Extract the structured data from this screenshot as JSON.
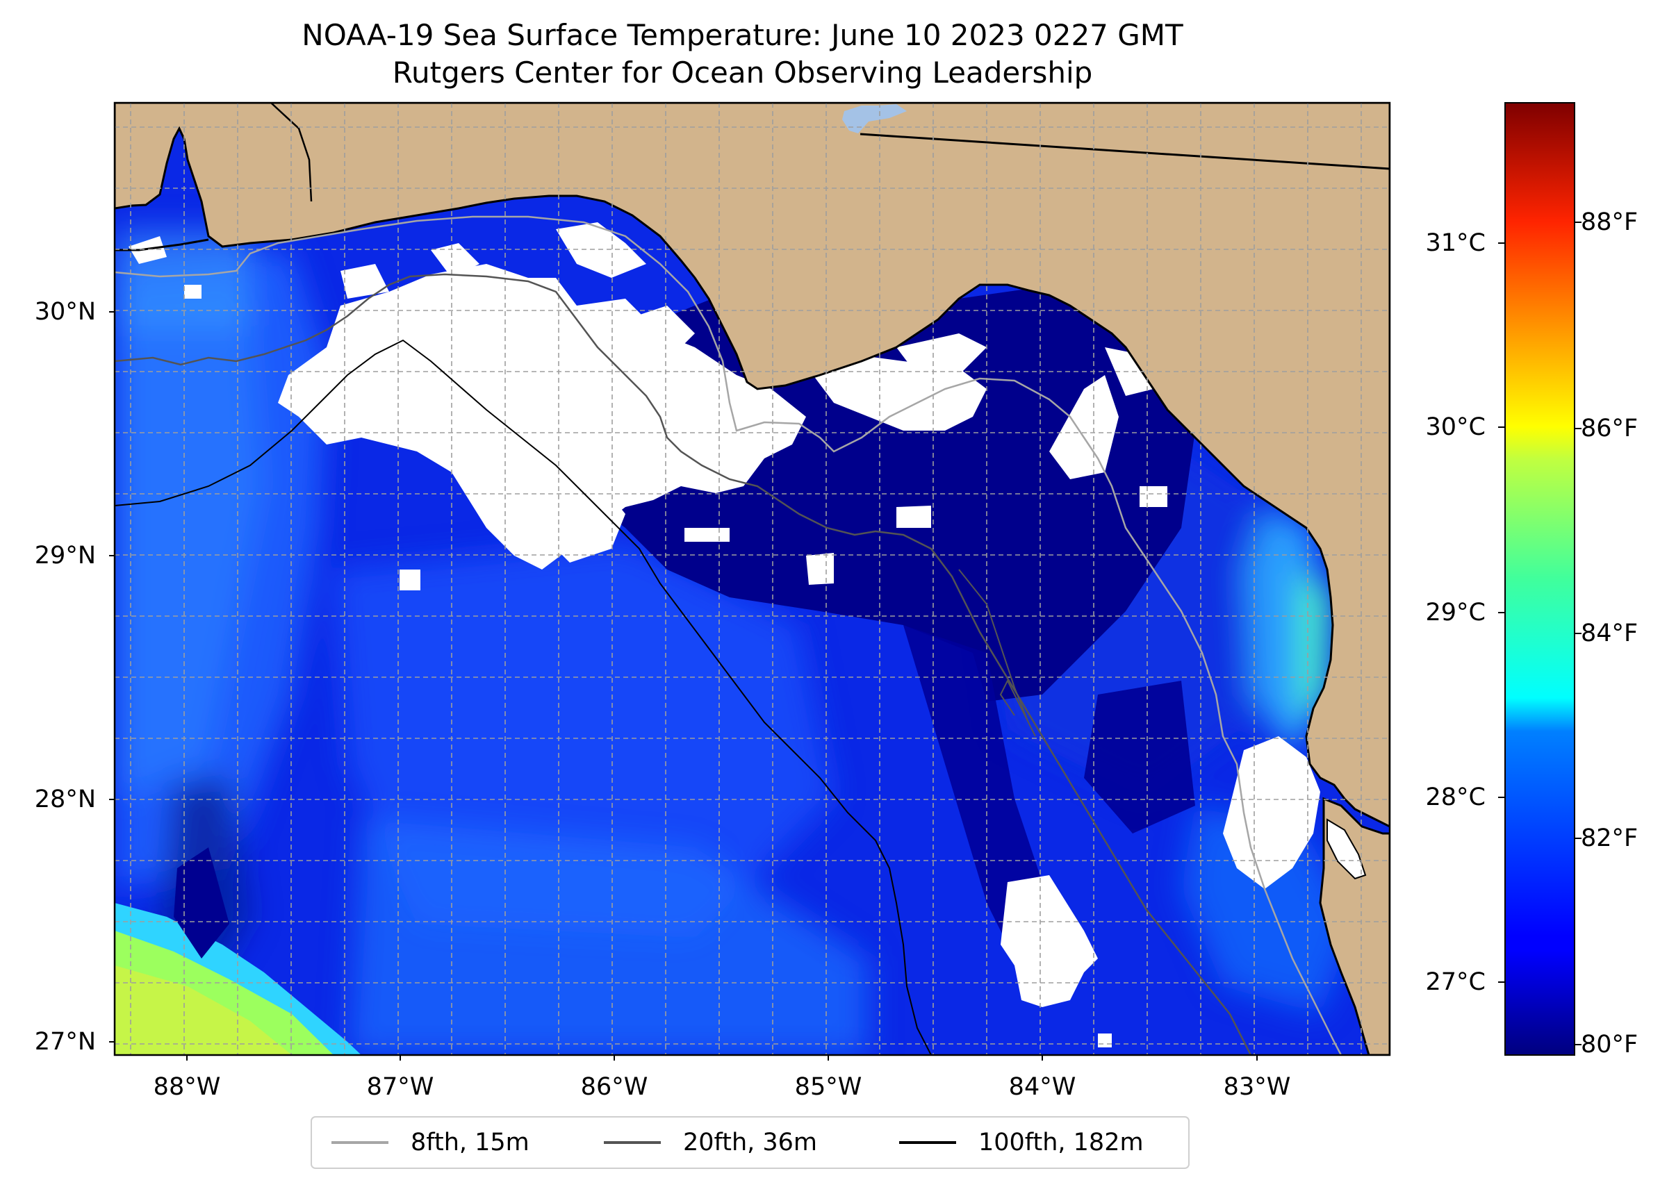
{
  "title": {
    "line1": "NOAA-19 Sea Surface Temperature: June 10 2023 0227 GMT",
    "line2": "Rutgers Center for Ocean Observing Leadership"
  },
  "map": {
    "lon_range": [
      -88.33,
      -82.37
    ],
    "lat_range": [
      26.93,
      30.85
    ],
    "lat_ticks": [
      {
        "value": 30,
        "label": "30°N"
      },
      {
        "value": 29,
        "label": "29°N"
      },
      {
        "value": 28,
        "label": "28°N"
      },
      {
        "value": 27,
        "label": "27°N"
      }
    ],
    "lon_ticks": [
      {
        "value": -88,
        "label": "88°W"
      },
      {
        "value": -87,
        "label": "87°W"
      },
      {
        "value": -86,
        "label": "86°W"
      },
      {
        "value": -85,
        "label": "85°W"
      },
      {
        "value": -84,
        "label": "84°W"
      },
      {
        "value": -83,
        "label": "83°W"
      }
    ],
    "colors": {
      "land": "#d2b48c",
      "cloud": "#ffffff",
      "gridline": "#9e9e9e",
      "lake": "#a4c2e6"
    }
  },
  "colorbar": {
    "celsius_ticks": [
      "31°C",
      "30°C",
      "29°C",
      "28°C",
      "27°C"
    ],
    "fahrenheit_ticks": [
      "88°F",
      "86°F",
      "84°F",
      "82°F",
      "80°F"
    ],
    "colormap": "jet",
    "range_F": [
      79.8,
      89.5
    ]
  },
  "legend": {
    "items": [
      {
        "label": "8fth, 15m",
        "color": "#a6a6a6"
      },
      {
        "label": "20fth, 36m",
        "color": "#545454"
      },
      {
        "label": "100fth, 182m",
        "color": "#000000"
      }
    ]
  }
}
